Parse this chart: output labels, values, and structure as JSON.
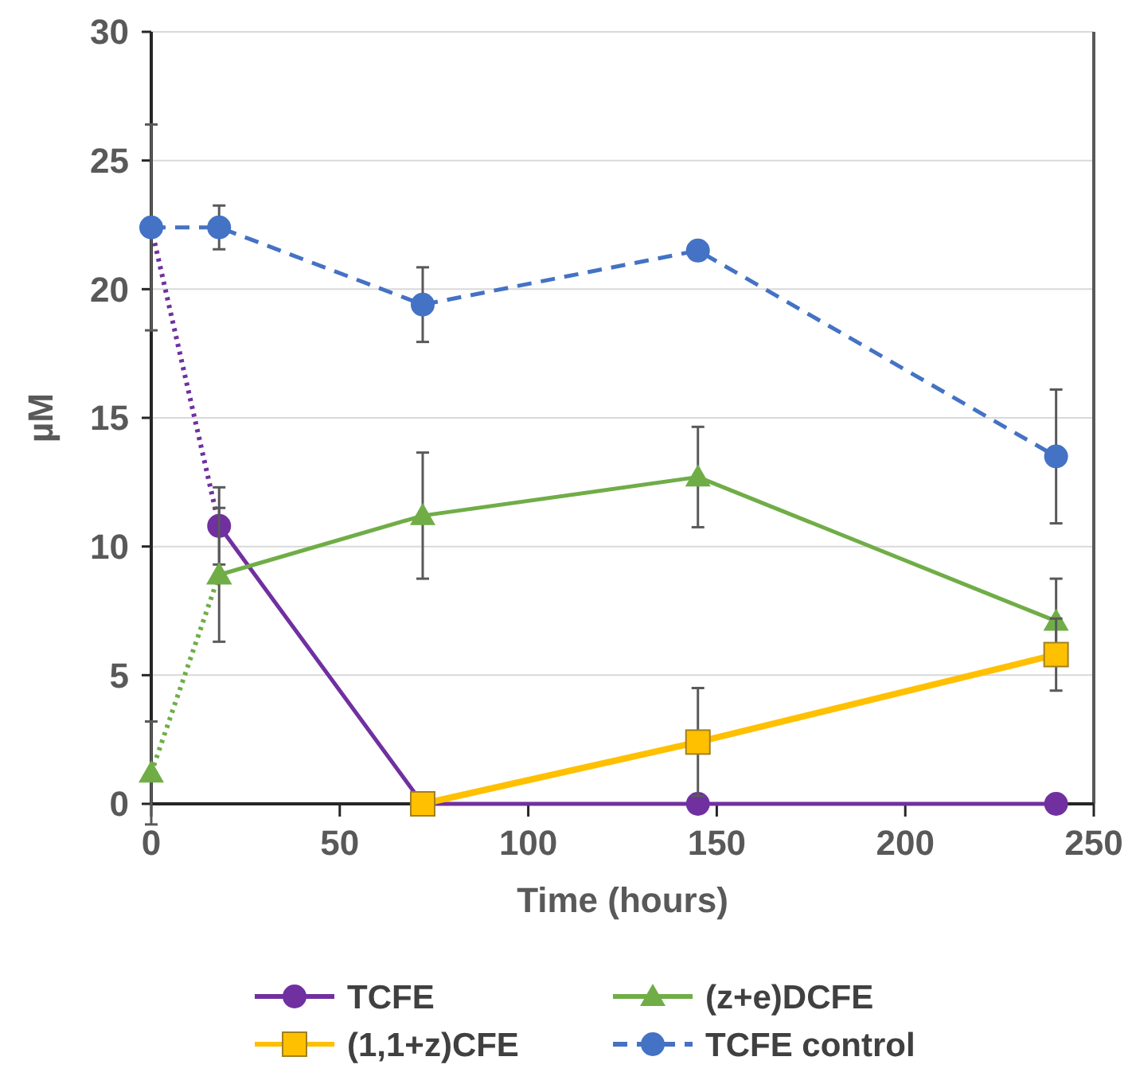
{
  "chart_data": {
    "type": "line",
    "xlabel": "Time (hours)",
    "ylabel": "µM",
    "xlim": [
      0,
      250
    ],
    "xticks": [
      0,
      50,
      100,
      150,
      200,
      250
    ],
    "ylim": [
      0,
      30
    ],
    "yticks": [
      0,
      5,
      10,
      15,
      20,
      25,
      30
    ],
    "grid": "y",
    "legend": "bottom",
    "series": [
      {
        "color": "#7030a0",
        "line_style": "dotted",
        "x": [
          0,
          18
        ],
        "values": [
          22.4,
          10.8
        ]
      },
      {
        "color": "#70ad47",
        "marker": "triangle",
        "line_style": "dotted",
        "x": [
          0,
          18
        ],
        "values": [
          1.2,
          8.9
        ],
        "errors": [
          2,
          null
        ]
      },
      {
        "name": "TCFE",
        "color": "#7030a0",
        "marker": "circle",
        "line_style": "solid",
        "x": [
          18,
          72,
          145,
          240
        ],
        "values": [
          10.8,
          0,
          0,
          0
        ],
        "errors": [
          1.5,
          null,
          null,
          null
        ]
      },
      {
        "name": "(z+e)DCFE",
        "color": "#70ad47",
        "marker": "triangle",
        "line_style": "solid",
        "x": [
          18,
          72,
          145,
          240
        ],
        "values": [
          8.9,
          11.2,
          12.7,
          7.1
        ],
        "errors": [
          2.6,
          2.45,
          1.95,
          1.65
        ]
      },
      {
        "name": "(1,1+z)CFE",
        "color": "#ffc000",
        "marker": "square",
        "line_style": "solid",
        "x": [
          72,
          145,
          240
        ],
        "values": [
          0,
          2.4,
          5.8
        ],
        "errors": [
          null,
          2.1,
          1.4
        ]
      },
      {
        "name": "TCFE control",
        "color": "#4472c4",
        "marker": "circle",
        "line_style": "dashed",
        "x": [
          0,
          18,
          72,
          145,
          240
        ],
        "values": [
          22.4,
          22.4,
          19.4,
          21.5,
          13.5
        ],
        "errors": [
          4,
          0.85,
          1.45,
          null,
          2.6
        ]
      }
    ]
  }
}
